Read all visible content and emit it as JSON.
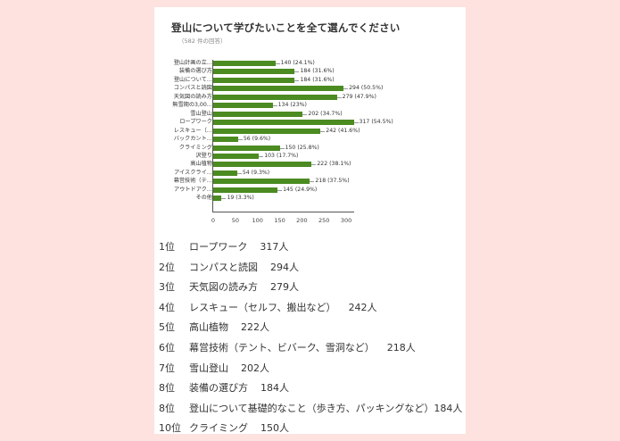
{
  "colors": {
    "background": "#fde2e0",
    "card": "#ffffff",
    "bar": "#4b8b21"
  },
  "chart": {
    "title": "登山について学びたいことを全て選んでください",
    "subtitle": "（582 件の回答）",
    "ticks": [
      "0",
      "50",
      "100",
      "150",
      "200",
      "250",
      "300"
    ]
  },
  "chart_data": {
    "type": "bar",
    "orientation": "horizontal",
    "title": "登山について学びたいことを全て選んでください",
    "subtitle": "（582 件の回答）",
    "categories": [
      "登山計画の立…",
      "装備の選び方",
      "登山について…",
      "コンパスと読図",
      "天気図の読み方",
      "無雪期の3,00…",
      "雪山登山",
      "ロープワーク",
      "レスキュー（…",
      "バックカント…",
      "クライミング",
      "沢登り",
      "高山植物",
      "アイスクライ…",
      "幕営技術（テ…",
      "アウトドアク…",
      "その他"
    ],
    "values": [
      140,
      184,
      184,
      294,
      279,
      134,
      202,
      317,
      242,
      56,
      150,
      103,
      222,
      54,
      218,
      145,
      19
    ],
    "percentages": [
      "24.1%",
      "31.6%",
      "31.6%",
      "50.5%",
      "47.9%",
      "23%",
      "34.7%",
      "54.5%",
      "41.6%",
      "9.6%",
      "25.8%",
      "17.7%",
      "38.1%",
      "9.3%",
      "37.5%",
      "24.9%",
      "3.3%"
    ],
    "data_labels": [
      "140 (24.1%)",
      "184 (31.6%)",
      "184 (31.6%)",
      "294 (50.5%)",
      "279 (47.9%)",
      "134 (23%)",
      "202 (34.7%)",
      "317 (54.5%)",
      "242 (41.6%)",
      "56 (9.6%)",
      "150 (25.8%)",
      "103 (17.7%)",
      "222 (38.1%)",
      "54 (9.3%)",
      "218 (37.5%)",
      "145 (24.9%)",
      "19 (3.3%)"
    ],
    "xlabel": "",
    "ylabel": "",
    "xlim": [
      0,
      300
    ],
    "xticks": [
      0,
      50,
      100,
      150,
      200,
      250,
      300
    ],
    "grid": false,
    "legend": "none"
  },
  "ranking": [
    {
      "rank": "1位",
      "item": "ロープワーク",
      "count": "317人"
    },
    {
      "rank": "2位",
      "item": "コンパスと読図",
      "count": "294人"
    },
    {
      "rank": "3位",
      "item": "天気図の読み方",
      "count": "279人"
    },
    {
      "rank": "4位",
      "item": "レスキュー（セルフ、搬出など）",
      "count": "242人"
    },
    {
      "rank": "5位",
      "item": "高山植物",
      "count": "222人"
    },
    {
      "rank": "6位",
      "item": "幕営技術（テント、ビバーク、雪洞など）",
      "count": "218人"
    },
    {
      "rank": "7位",
      "item": "雪山登山",
      "count": "202人"
    },
    {
      "rank": "8位",
      "item": "装備の選び方",
      "count": "184人"
    },
    {
      "rank": "8位",
      "item": "登山について基礎的なこと（歩き方、パッキングなど）",
      "count": "184人"
    },
    {
      "rank": "10位",
      "item": "クライミング",
      "count": "150人"
    }
  ]
}
